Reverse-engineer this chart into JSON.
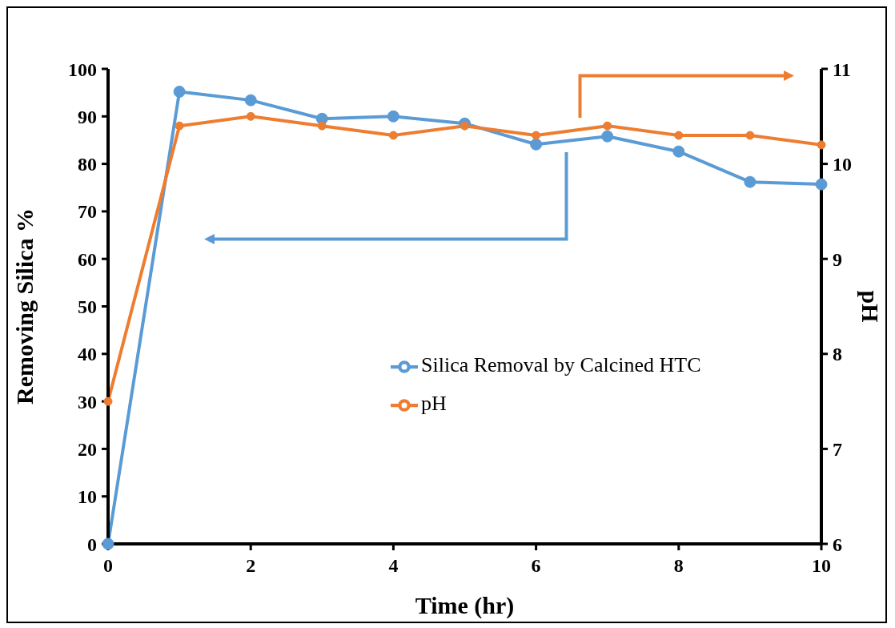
{
  "chart_data": {
    "type": "line",
    "xlabel": "Time (hr)",
    "ylabel": "Removing Silica %",
    "y2label": "pH",
    "x": [
      0,
      1,
      2,
      3,
      4,
      5,
      6,
      7,
      8,
      9,
      10
    ],
    "series": [
      {
        "name": "Silica Removal by Calcined HTC",
        "color": "#5b9bd5",
        "values": [
          0,
          95.2,
          93.4,
          89.5,
          90,
          88.5,
          84.1,
          85.8,
          82.6,
          76.2,
          75.7
        ]
      },
      {
        "name": "pH",
        "color": "#ed7d31",
        "axis": "y2",
        "values": [
          7.5,
          10.4,
          10.5,
          10.4,
          10.3,
          10.4,
          10.3,
          10.4,
          10.3,
          10.3,
          10.2
        ]
      }
    ],
    "xlim": [
      0,
      10
    ],
    "xticks": [
      0,
      2,
      4,
      6,
      8,
      10
    ],
    "ylim": [
      0,
      100
    ],
    "yticks": [
      0,
      10,
      20,
      30,
      40,
      50,
      60,
      70,
      80,
      90,
      100
    ],
    "y2lim": [
      6,
      11
    ],
    "y2ticks": [
      6,
      7,
      8,
      9,
      10,
      11
    ],
    "grid": false,
    "legend": "right",
    "marker": "circle",
    "line_style": "solid"
  }
}
